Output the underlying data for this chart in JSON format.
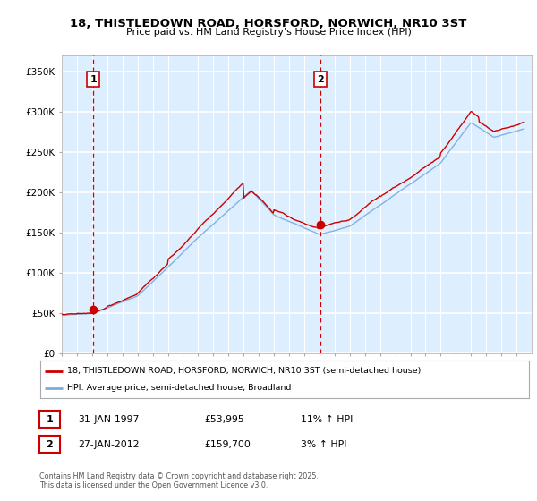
{
  "title": "18, THISTLEDOWN ROAD, HORSFORD, NORWICH, NR10 3ST",
  "subtitle": "Price paid vs. HM Land Registry's House Price Index (HPI)",
  "ylabel_values": [
    "£0",
    "£50K",
    "£100K",
    "£150K",
    "£200K",
    "£250K",
    "£300K",
    "£350K"
  ],
  "yticks": [
    0,
    50000,
    100000,
    150000,
    200000,
    250000,
    300000,
    350000
  ],
  "ylim": [
    0,
    370000
  ],
  "sale1_date": 1997.08,
  "sale1_price": 53995,
  "sale2_date": 2012.08,
  "sale2_price": 159700,
  "legend_line1": "18, THISTLEDOWN ROAD, HORSFORD, NORWICH, NR10 3ST (semi-detached house)",
  "legend_line2": "HPI: Average price, semi-detached house, Broadland",
  "table_row1": [
    "1",
    "31-JAN-1997",
    "£53,995",
    "11% ↑ HPI"
  ],
  "table_row2": [
    "2",
    "27-JAN-2012",
    "£159,700",
    "3% ↑ HPI"
  ],
  "footer": "Contains HM Land Registry data © Crown copyright and database right 2025.\nThis data is licensed under the Open Government Licence v3.0.",
  "red_color": "#cc0000",
  "blue_color": "#7aabdb",
  "bg_color": "#ddeeff",
  "grid_color": "#ffffff",
  "dashed_color": "#cc0000"
}
